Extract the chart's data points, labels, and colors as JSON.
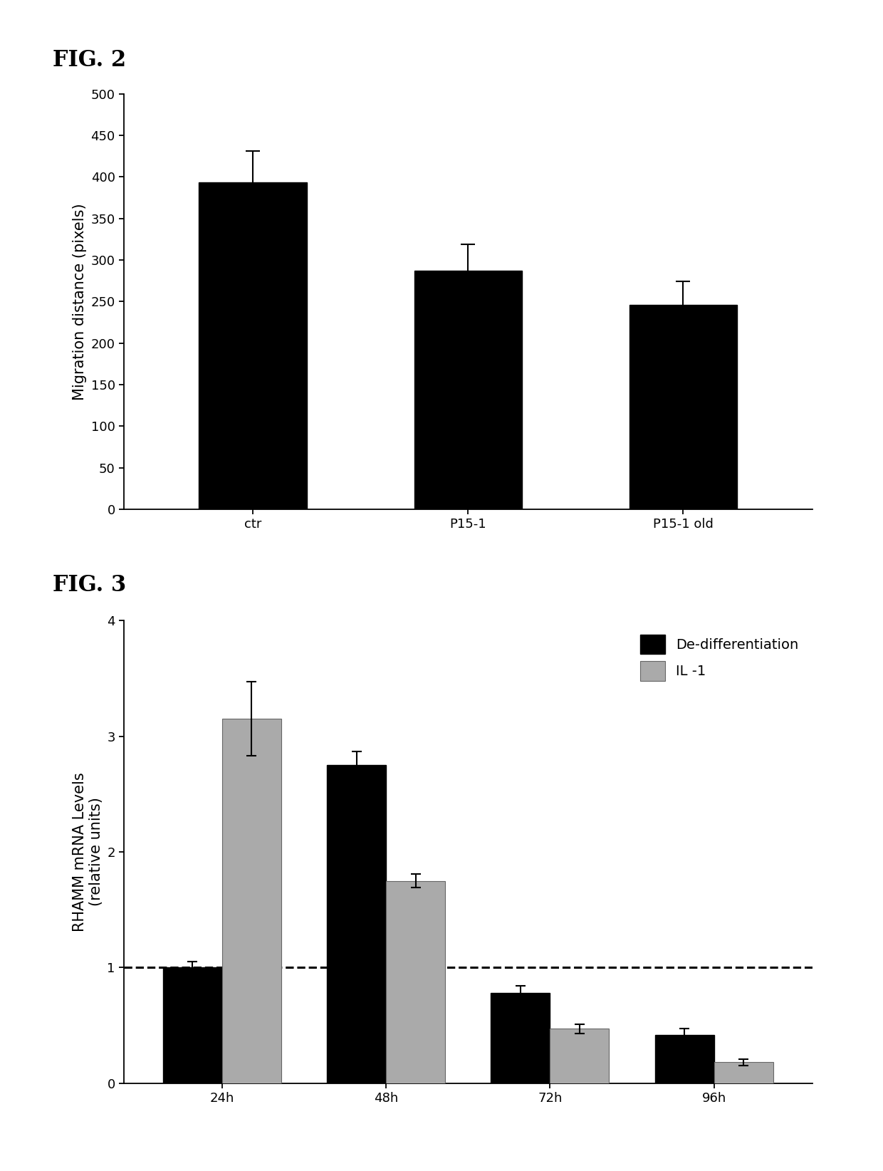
{
  "fig2": {
    "title": "FIG. 2",
    "categories": [
      "ctr",
      "P15-1",
      "P15-1 old"
    ],
    "values": [
      393,
      287,
      246
    ],
    "errors": [
      38,
      32,
      28
    ],
    "bar_color": "#000000",
    "ylabel": "Migration distance (pixels)",
    "ylim": [
      0,
      500
    ],
    "yticks": [
      0,
      50,
      100,
      150,
      200,
      250,
      300,
      350,
      400,
      450,
      500
    ]
  },
  "fig3": {
    "title": "FIG. 3",
    "categories": [
      "24h",
      "48h",
      "72h",
      "96h"
    ],
    "dediff_values": [
      1.0,
      2.75,
      0.78,
      0.42
    ],
    "dediff_errors": [
      0.05,
      0.12,
      0.06,
      0.05
    ],
    "il1_values": [
      3.15,
      1.75,
      0.47,
      0.18
    ],
    "il1_errors": [
      0.32,
      0.06,
      0.04,
      0.03
    ],
    "dediff_color": "#000000",
    "il1_color": "#aaaaaa",
    "ylabel": "RHAMM mRNA Levels\n(relative units)",
    "ylim": [
      0,
      4
    ],
    "yticks": [
      0,
      1,
      2,
      3,
      4
    ],
    "dashed_line_y": 1.0,
    "legend_labels": [
      "De-differentiation",
      "IL -1"
    ]
  },
  "background_color": "#ffffff",
  "fig_label_fontsize": 22,
  "axis_label_fontsize": 15,
  "tick_fontsize": 13,
  "legend_fontsize": 14
}
